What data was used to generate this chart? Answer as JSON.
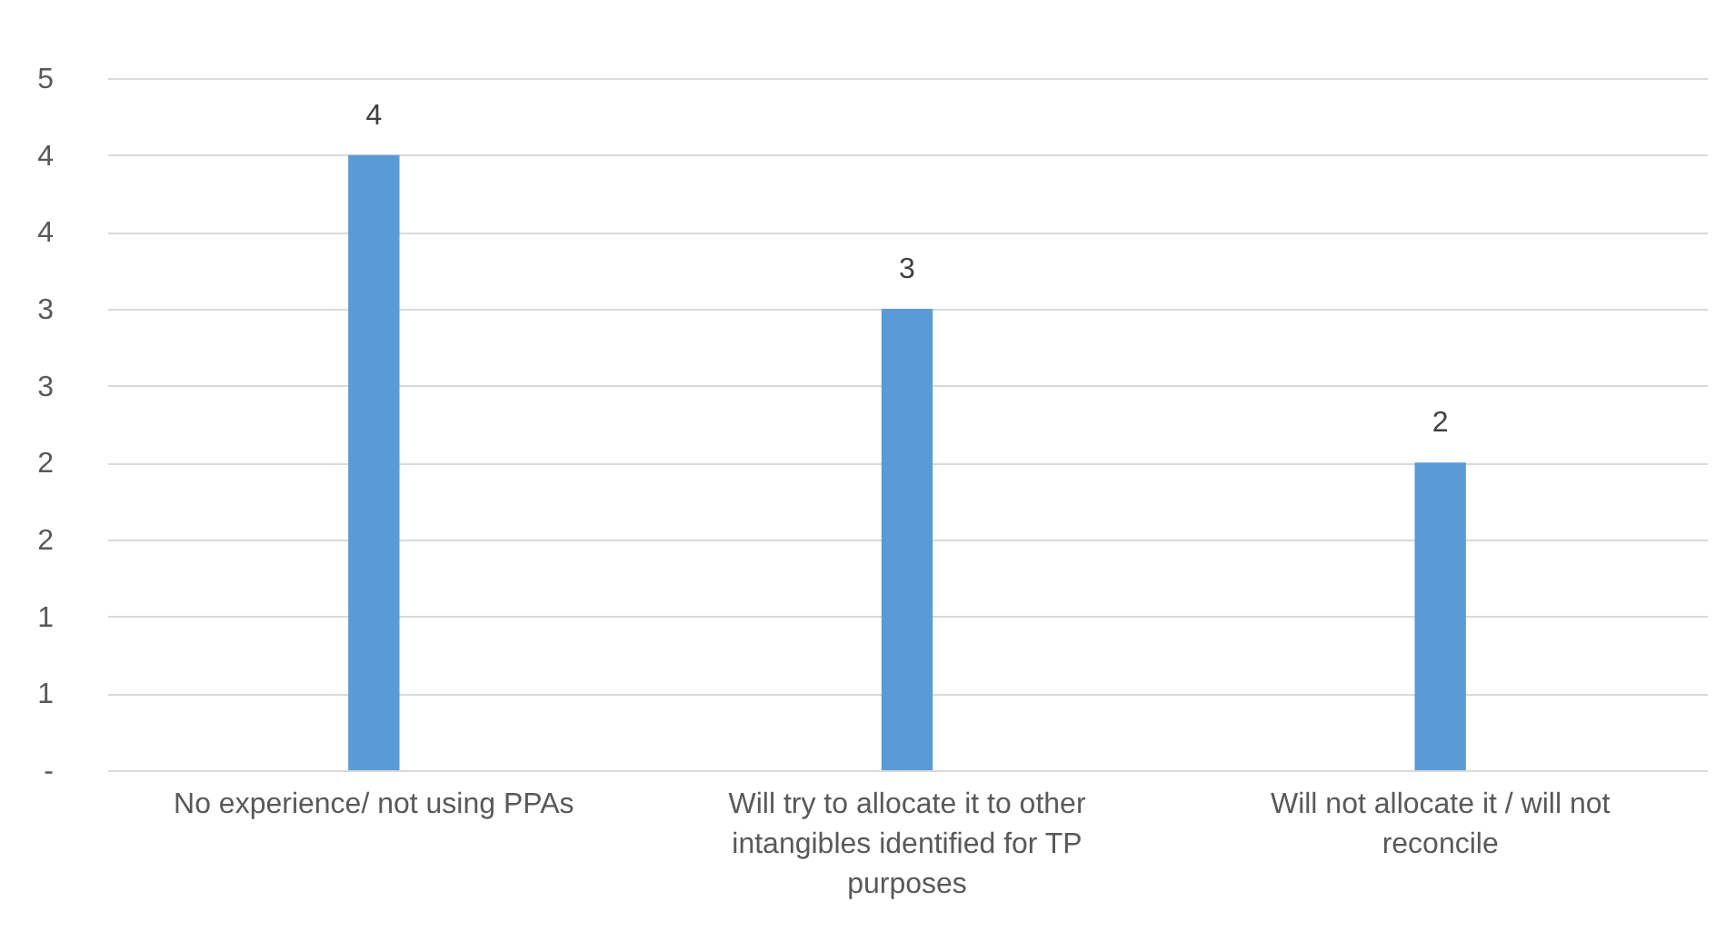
{
  "chart_data": {
    "type": "bar",
    "categories": [
      "No experience/ not using PPAs",
      "Will try to allocate it to other intangibles identified for TP purposes",
      "Will not allocate it / will not reconcile"
    ],
    "values": [
      4,
      3,
      2
    ],
    "color": "#5b9bd5",
    "data_labels": true,
    "grid": "y",
    "ylim": [
      0,
      4.5
    ],
    "yticks": [
      {
        "value": 0,
        "label": "-"
      },
      {
        "value": 0.5,
        "label": "1"
      },
      {
        "value": 1,
        "label": "1"
      },
      {
        "value": 1.5,
        "label": "2"
      },
      {
        "value": 2,
        "label": "2"
      },
      {
        "value": 2.5,
        "label": "3"
      },
      {
        "value": 3,
        "label": "3"
      },
      {
        "value": 3.5,
        "label": "4"
      },
      {
        "value": 4,
        "label": "4"
      },
      {
        "value": 4.5,
        "label": "5"
      }
    ]
  }
}
